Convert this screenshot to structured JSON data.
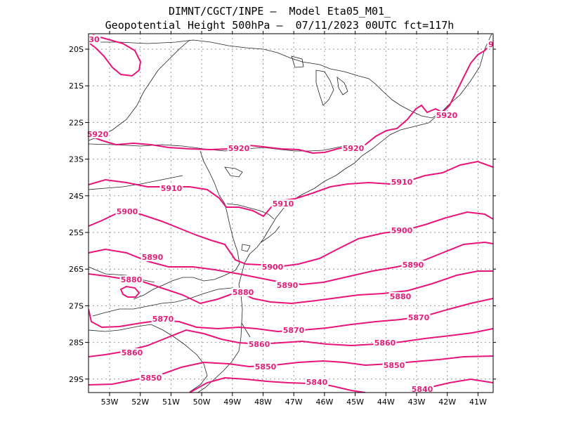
{
  "title": {
    "line1": "DIMNT/CGCT/INPE –  Model Eta05_M01_",
    "line2": "Geopotential Height 500hPa –  07/11/2023 00UTC fct=117h"
  },
  "axes": {
    "lon_labels": [
      "53W",
      "52W",
      "51W",
      "50W",
      "49W",
      "48W",
      "47W",
      "46W",
      "45W",
      "44W",
      "43W",
      "42W",
      "41W"
    ],
    "lat_labels": [
      "20S",
      "21S",
      "22S",
      "23S",
      "24S",
      "25S",
      "26S",
      "27S",
      "28S",
      "29S"
    ]
  },
  "contour_color": "#e8147a",
  "contour_labels": [
    {
      "value": "30"
    },
    {
      "value": "5920"
    },
    {
      "value": "5920"
    },
    {
      "value": "5920"
    },
    {
      "value": "5920"
    },
    {
      "value": "5910"
    },
    {
      "value": "5910"
    },
    {
      "value": "5910"
    },
    {
      "value": "5900"
    },
    {
      "value": "5900"
    },
    {
      "value": "5900"
    },
    {
      "value": "5890"
    },
    {
      "value": "5890"
    },
    {
      "value": "5890"
    },
    {
      "value": "5880"
    },
    {
      "value": "5880"
    },
    {
      "value": "5880"
    },
    {
      "value": "5870"
    },
    {
      "value": "5870"
    },
    {
      "value": "5870"
    },
    {
      "value": "5860"
    },
    {
      "value": "5860"
    },
    {
      "value": "5860"
    },
    {
      "value": "5850"
    },
    {
      "value": "5850"
    },
    {
      "value": "5850"
    },
    {
      "value": "5840"
    },
    {
      "value": "5840"
    },
    {
      "value": "9"
    }
  ]
}
